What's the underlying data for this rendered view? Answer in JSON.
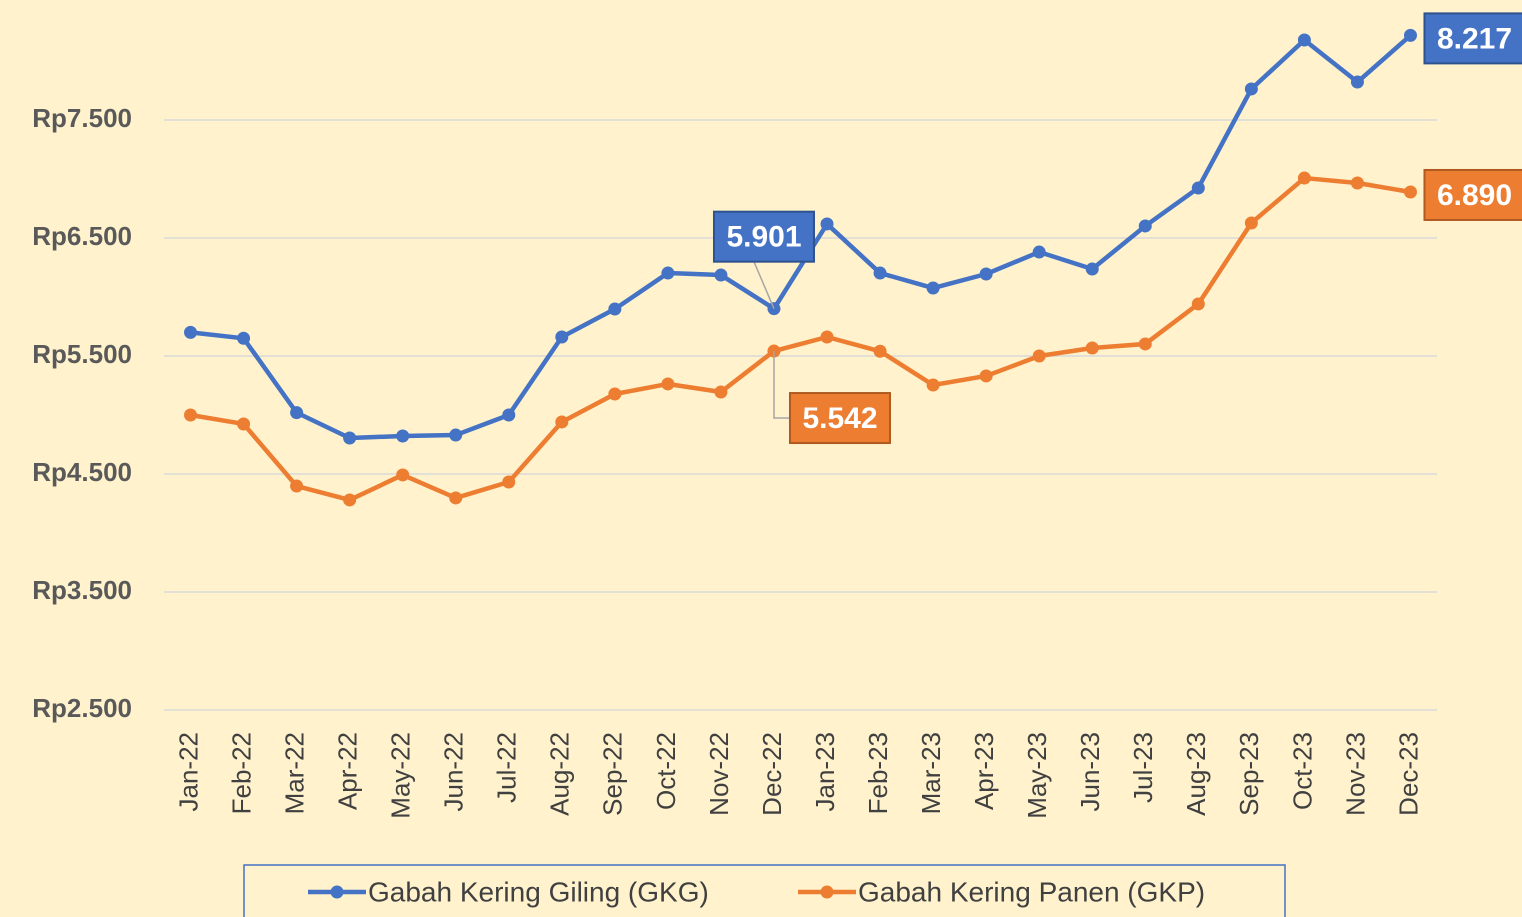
{
  "chart_data": {
    "type": "line",
    "categories": [
      "Jan-22",
      "Feb-22",
      "Mar-22",
      "Apr-22",
      "May-22",
      "Jun-22",
      "Jul-22",
      "Aug-22",
      "Sep-22",
      "Oct-22",
      "Nov-22",
      "Dec-22",
      "Jan-23",
      "Feb-23",
      "Mar-23",
      "Apr-23",
      "May-23",
      "Jun-23",
      "Jul-23",
      "Aug-23",
      "Sep-23",
      "Oct-23",
      "Nov-23",
      "Dec-23"
    ],
    "series": [
      {
        "name": "Gabah Kering Giling (GKG)",
        "color": "#4472c4",
        "values": [
          5700,
          5650,
          5020,
          4805,
          4822,
          4830,
          5000,
          5661,
          5898,
          6203,
          6186,
          5901,
          6619,
          6203,
          6076,
          6195,
          6381,
          6237,
          6602,
          6924,
          7763,
          8178,
          7822,
          8217
        ],
        "value_labels": [
          null,
          null,
          null,
          null,
          null,
          null,
          null,
          null,
          null,
          null,
          null,
          "5.901",
          null,
          null,
          null,
          null,
          null,
          null,
          null,
          null,
          null,
          null,
          null,
          "8.217"
        ]
      },
      {
        "name": "Gabah Kering Panen (GKP)",
        "color": "#ed7d31",
        "values": [
          5000,
          4924,
          4398,
          4280,
          4492,
          4297,
          4432,
          4941,
          5178,
          5263,
          5195,
          5542,
          5661,
          5540,
          5254,
          5331,
          5500,
          5568,
          5602,
          5941,
          6627,
          7008,
          6966,
          6890
        ],
        "value_labels": [
          null,
          null,
          null,
          null,
          null,
          null,
          null,
          null,
          null,
          null,
          null,
          "5.542",
          null,
          null,
          null,
          null,
          null,
          null,
          null,
          null,
          null,
          null,
          null,
          "6.890"
        ]
      }
    ],
    "ylim": [
      2500,
      8500
    ],
    "yticks": [
      {
        "value": 2500,
        "label": "Rp2.500"
      },
      {
        "value": 3500,
        "label": "Rp3.500"
      },
      {
        "value": 4500,
        "label": "Rp4.500"
      },
      {
        "value": 5500,
        "label": "Rp5.500"
      },
      {
        "value": 6500,
        "label": "Rp6.500"
      },
      {
        "value": 7500,
        "label": "Rp7.500"
      }
    ],
    "grid": true,
    "legend": "bottom"
  }
}
